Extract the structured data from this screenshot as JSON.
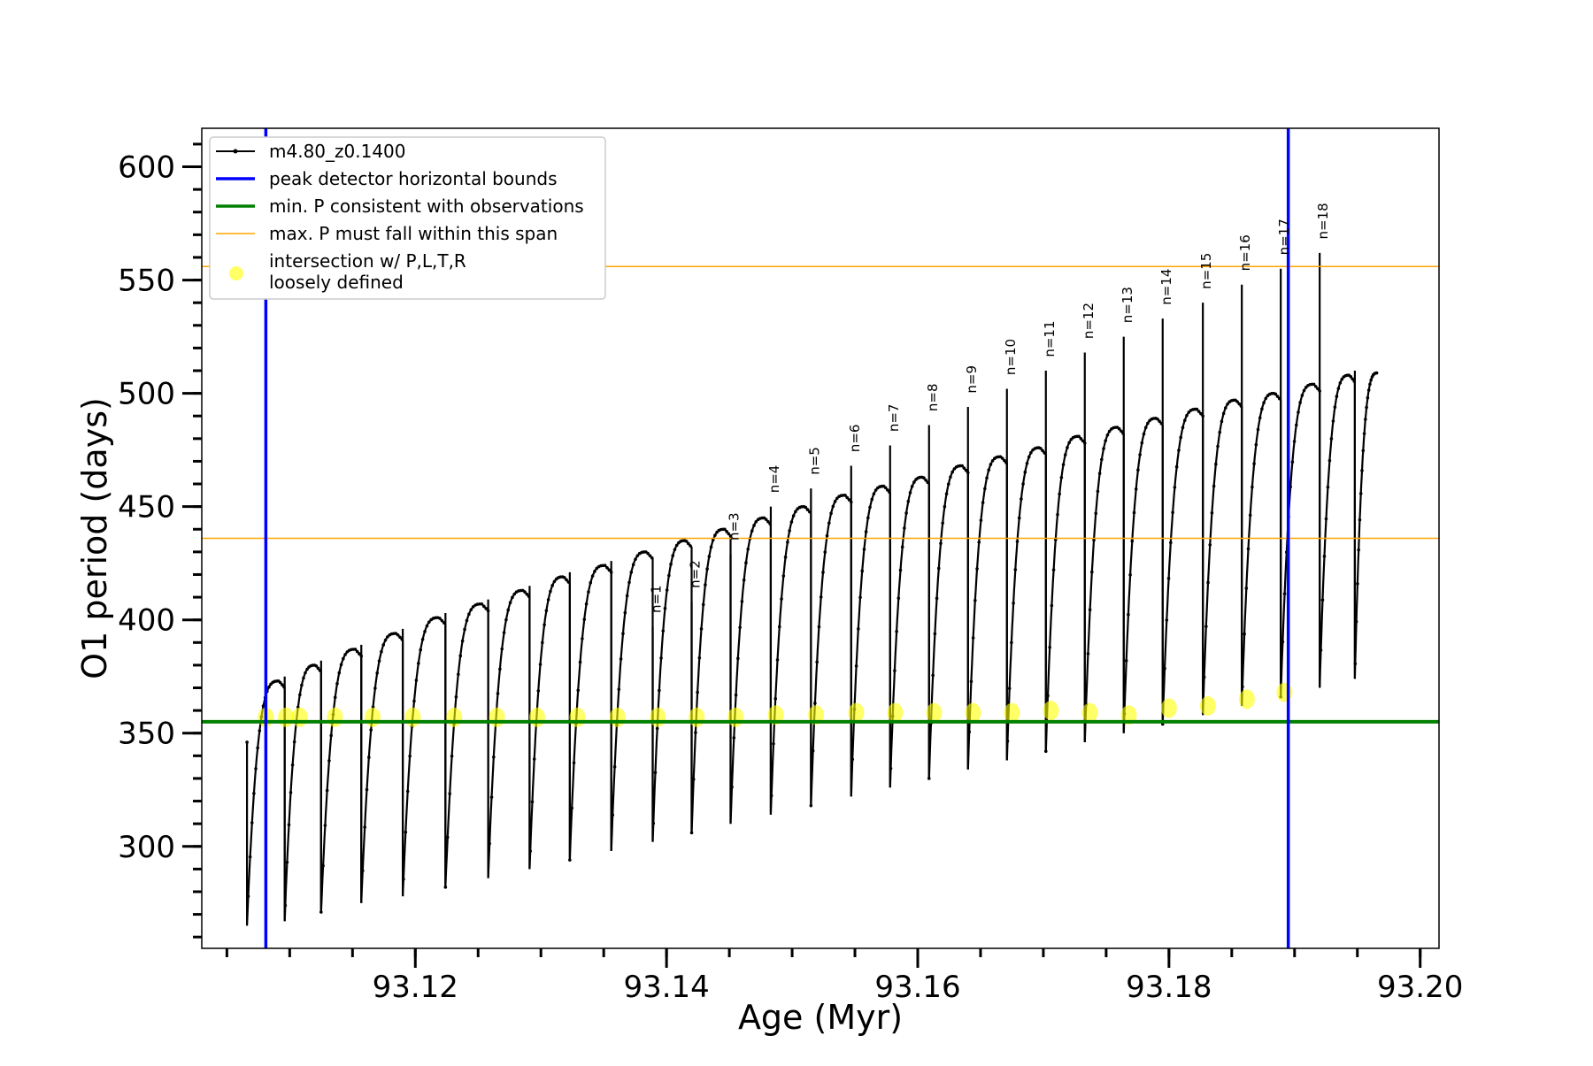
{
  "chart_data": {
    "type": "line",
    "title": "",
    "xlabel": "Age (Myr)",
    "ylabel": "O1 period (days)",
    "xlim": [
      93.103,
      93.2015
    ],
    "ylim": [
      255,
      617
    ],
    "x_ticks": [
      93.12,
      93.14,
      93.16,
      93.18,
      93.2
    ],
    "x_tick_labels": [
      "93.12",
      "93.14",
      "93.16",
      "93.18",
      "93.20"
    ],
    "y_ticks": [
      300,
      350,
      400,
      450,
      500,
      550,
      600
    ],
    "y_tick_labels": [
      "300",
      "350",
      "400",
      "450",
      "500",
      "550",
      "600"
    ],
    "legend_position": "upper-left",
    "legend": [
      {
        "label": "m4.80_z0.1400",
        "style": "black-line-dot",
        "color": "#000000"
      },
      {
        "label": "peak detector horizontal bounds",
        "style": "line",
        "color": "#0000ff"
      },
      {
        "label": "min. P consistent with observations",
        "style": "line",
        "color": "#008000"
      },
      {
        "label": "max. P must fall within this span",
        "style": "thin-line",
        "color": "#ffa500"
      },
      {
        "label": "intersection w/ P,L,T,R\nloosely defined",
        "style": "marker",
        "color": "#ffff00"
      }
    ],
    "vertical_lines": {
      "series": "peak detector horizontal bounds",
      "x": [
        93.1081,
        93.1895
      ],
      "color": "#0000ff"
    },
    "min_period_line": {
      "series": "min. P consistent with observations",
      "y": 355,
      "color": "#008000"
    },
    "max_period_span": {
      "series": "max. P must fall within this span",
      "y": [
        436,
        556
      ],
      "color": "#ffa500"
    },
    "series": [
      {
        "name": "m4.80_z0.1400",
        "color": "#000000",
        "cycles": [
          {
            "start": 93.1066,
            "end": 93.1096,
            "peak": 373,
            "min": 265
          },
          {
            "start": 93.1096,
            "end": 93.1125,
            "peak": 380,
            "min": 267
          },
          {
            "start": 93.1125,
            "end": 93.1157,
            "peak": 387,
            "min": 271
          },
          {
            "start": 93.1157,
            "end": 93.119,
            "peak": 394,
            "min": 275
          },
          {
            "start": 93.119,
            "end": 93.1224,
            "peak": 401,
            "min": 278
          },
          {
            "start": 93.1224,
            "end": 93.1258,
            "peak": 407,
            "min": 282
          },
          {
            "start": 93.1258,
            "end": 93.1291,
            "peak": 413,
            "min": 286
          },
          {
            "start": 93.1291,
            "end": 93.1323,
            "peak": 419,
            "min": 290
          },
          {
            "start": 93.1323,
            "end": 93.1356,
            "peak": 424,
            "min": 294
          },
          {
            "start": 93.1356,
            "end": 93.1389,
            "peak": 430,
            "min": 298
          },
          {
            "start": 93.1389,
            "end": 93.142,
            "peak": 435,
            "min": 302
          },
          {
            "start": 93.142,
            "end": 93.1451,
            "peak": 440,
            "min": 306
          },
          {
            "start": 93.1451,
            "end": 93.1483,
            "peak": 445,
            "min": 310
          },
          {
            "start": 93.1483,
            "end": 93.1515,
            "peak": 450,
            "min": 314
          },
          {
            "start": 93.1515,
            "end": 93.1547,
            "peak": 455,
            "min": 318
          },
          {
            "start": 93.1547,
            "end": 93.1578,
            "peak": 459,
            "min": 322
          },
          {
            "start": 93.1578,
            "end": 93.1609,
            "peak": 463,
            "min": 326
          },
          {
            "start": 93.1609,
            "end": 93.164,
            "peak": 468,
            "min": 330
          },
          {
            "start": 93.164,
            "end": 93.1671,
            "peak": 472,
            "min": 334
          },
          {
            "start": 93.1671,
            "end": 93.1702,
            "peak": 476,
            "min": 338
          },
          {
            "start": 93.1702,
            "end": 93.1733,
            "peak": 481,
            "min": 342
          },
          {
            "start": 93.1733,
            "end": 93.1764,
            "peak": 485,
            "min": 346
          },
          {
            "start": 93.1764,
            "end": 93.1795,
            "peak": 489,
            "min": 350
          },
          {
            "start": 93.1795,
            "end": 93.1827,
            "peak": 493,
            "min": 354
          },
          {
            "start": 93.1827,
            "end": 93.1858,
            "peak": 497,
            "min": 358
          },
          {
            "start": 93.1858,
            "end": 93.1889,
            "peak": 500,
            "min": 362
          },
          {
            "start": 93.1889,
            "end": 93.192,
            "peak": 504,
            "min": 366
          },
          {
            "start": 93.192,
            "end": 93.1948,
            "peak": 508,
            "min": 370
          },
          {
            "start": 93.1948,
            "end": 93.1966,
            "peak": 509,
            "min": 374
          }
        ],
        "initial_spike": {
          "x": 93.1066,
          "y": 346
        }
      },
      {
        "name": "intersection w/ P,L,T,R\nloosely defined",
        "color": "#ffff00",
        "points": [
          [
            93.1081,
            357
          ],
          [
            93.1097,
            357
          ],
          [
            93.1108,
            357
          ],
          [
            93.1136,
            357
          ],
          [
            93.1166,
            357
          ],
          [
            93.1198,
            357
          ],
          [
            93.1231,
            357
          ],
          [
            93.1265,
            357
          ],
          [
            93.1297,
            357
          ],
          [
            93.1329,
            357
          ],
          [
            93.1361,
            357
          ],
          [
            93.1393,
            357
          ],
          [
            93.1424,
            357
          ],
          [
            93.1455,
            357
          ],
          [
            93.1487,
            358
          ],
          [
            93.1519,
            358
          ],
          [
            93.1551,
            359
          ],
          [
            93.1582,
            359
          ],
          [
            93.1613,
            359
          ],
          [
            93.1644,
            359
          ],
          [
            93.1675,
            359
          ],
          [
            93.1706,
            360
          ],
          [
            93.1737,
            359
          ],
          [
            93.1768,
            358
          ],
          [
            93.18,
            361
          ],
          [
            93.1831,
            362
          ],
          [
            93.1862,
            365
          ],
          [
            93.1892,
            368
          ]
        ]
      }
    ],
    "annotations": [
      {
        "text": "n=1",
        "x": 93.1389,
        "y": 403
      },
      {
        "text": "n=2",
        "x": 93.142,
        "y": 414
      },
      {
        "text": "n=3",
        "x": 93.1451,
        "y": 435
      },
      {
        "text": "n=4",
        "x": 93.1483,
        "y": 456
      },
      {
        "text": "n=5",
        "x": 93.1515,
        "y": 464
      },
      {
        "text": "n=6",
        "x": 93.1547,
        "y": 474
      },
      {
        "text": "n=7",
        "x": 93.1578,
        "y": 483
      },
      {
        "text": "n=8",
        "x": 93.1609,
        "y": 492
      },
      {
        "text": "n=9",
        "x": 93.164,
        "y": 500
      },
      {
        "text": "n=10",
        "x": 93.1671,
        "y": 508
      },
      {
        "text": "n=11",
        "x": 93.1702,
        "y": 516
      },
      {
        "text": "n=12",
        "x": 93.1733,
        "y": 524
      },
      {
        "text": "n=13",
        "x": 93.1764,
        "y": 531
      },
      {
        "text": "n=14",
        "x": 93.1795,
        "y": 539
      },
      {
        "text": "n=15",
        "x": 93.1827,
        "y": 546
      },
      {
        "text": "n=16",
        "x": 93.1858,
        "y": 554
      },
      {
        "text": "n=17",
        "x": 93.1889,
        "y": 561
      },
      {
        "text": "n=18",
        "x": 93.192,
        "y": 568
      }
    ],
    "grid": false
  }
}
